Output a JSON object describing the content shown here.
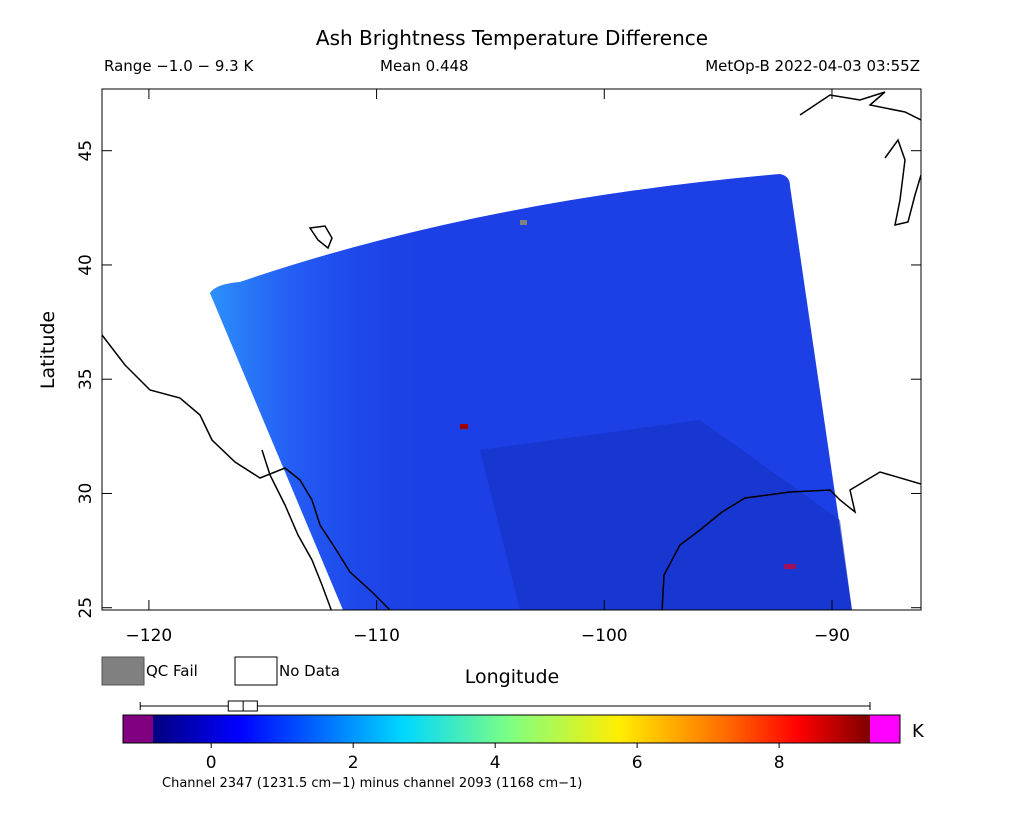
{
  "chart_data": {
    "type": "swath-map",
    "title": "Ash Brightness Temperature Difference",
    "range_text": "Range −1.0 − 9.3 K",
    "mean_text": "Mean 0.448",
    "source_text": "MetOp-B 2022-04-03 03:55Z",
    "x_label": "Longitude",
    "y_label": "Latitude",
    "xlim": [
      -122.06,
      -86.09
    ],
    "ylim": [
      24.9,
      47.7
    ],
    "xticks": [
      {
        "value": -120,
        "label": "−120"
      },
      {
        "value": -110,
        "label": "−110"
      },
      {
        "value": -100,
        "label": "−100"
      },
      {
        "value": -90,
        "label": "−90"
      }
    ],
    "yticks": [
      25,
      30,
      35,
      40,
      45
    ],
    "legend": [
      {
        "name": "QC Fail",
        "color": "#808080"
      },
      {
        "name": "No Data",
        "color": "#ffffff"
      }
    ],
    "colorbar": {
      "lim": [
        -0.82,
        9.28
      ],
      "ticks": [
        0,
        2,
        4,
        6,
        8
      ],
      "unit": "K",
      "boxplot": {
        "whisker_low": -1.0,
        "q1": 0.24,
        "median": 0.45,
        "q3": 0.65,
        "whisker_high": 9.28
      }
    },
    "footnote": "Channel 2347 (1231.5 cm−1) minus channel 2093 (1168 cm−1)"
  }
}
